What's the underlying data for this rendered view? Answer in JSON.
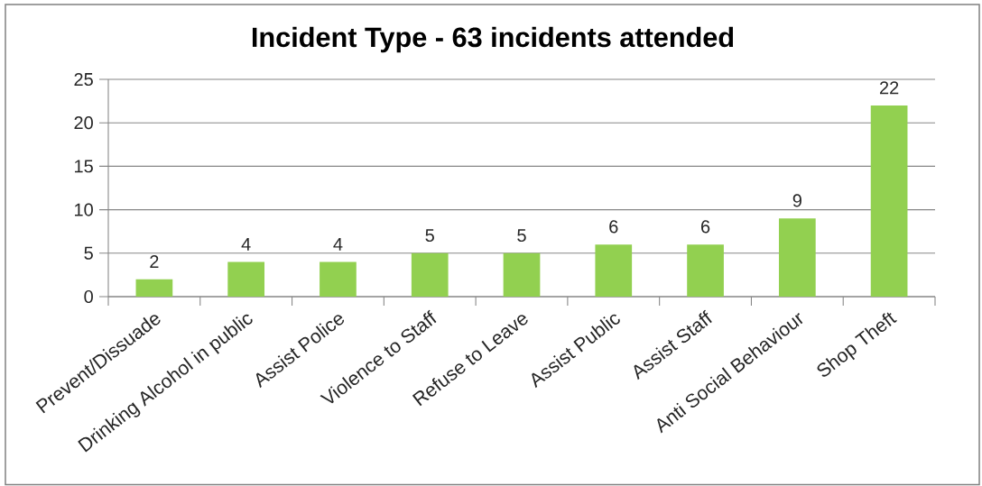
{
  "chart_data": {
    "type": "bar",
    "title": "Incident Type - 63 incidents attended",
    "categories": [
      "Prevent/Dissuade",
      "Drinking Alcohol in public",
      "Assist Police",
      "Violence to Staff",
      "Refuse to Leave",
      "Assist Public",
      "Assist Staff",
      "Anti Social Behaviour",
      "Shop Theft"
    ],
    "values": [
      2,
      4,
      4,
      5,
      5,
      6,
      6,
      9,
      22
    ],
    "color": "#92d050",
    "ylim": [
      0,
      25
    ],
    "yticks": [
      0,
      5,
      10,
      15,
      20,
      25
    ],
    "grid": "y",
    "data_labels": true
  }
}
